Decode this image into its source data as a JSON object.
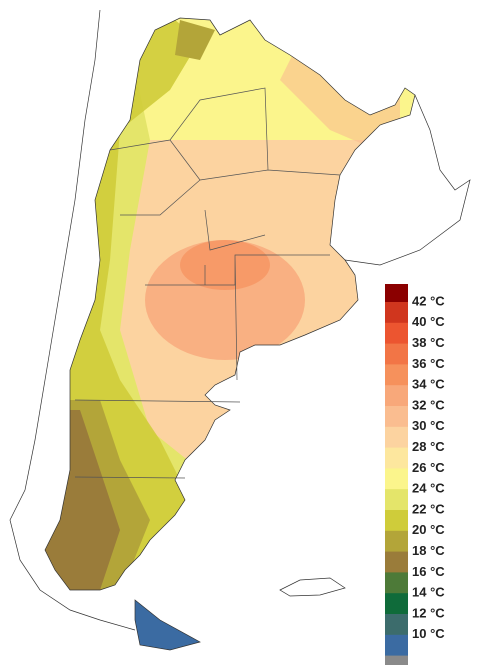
{
  "legend": {
    "labels": [
      "42 °C",
      "40 °C",
      "38 °C",
      "36 °C",
      "34 °C",
      "32 °C",
      "30 °C",
      "28 °C",
      "26 °C",
      "24 °C",
      "22 °C",
      "20 °C",
      "18 °C",
      "16 °C",
      "14 °C",
      "12 °C",
      "10 °C"
    ],
    "colors": [
      "#8b0000",
      "#d0361e",
      "#ec5530",
      "#f27546",
      "#f6915c",
      "#f8a87a",
      "#fabd90",
      "#fcd3a0",
      "#fde79e",
      "#fbf58c",
      "#e4e56a",
      "#cfcc3a",
      "#b3a539",
      "#9a7c3a",
      "#4d7a38",
      "#0f6b3a",
      "#3c6c6c",
      "#3b6ba2",
      "#8a8a8a"
    ]
  }
}
